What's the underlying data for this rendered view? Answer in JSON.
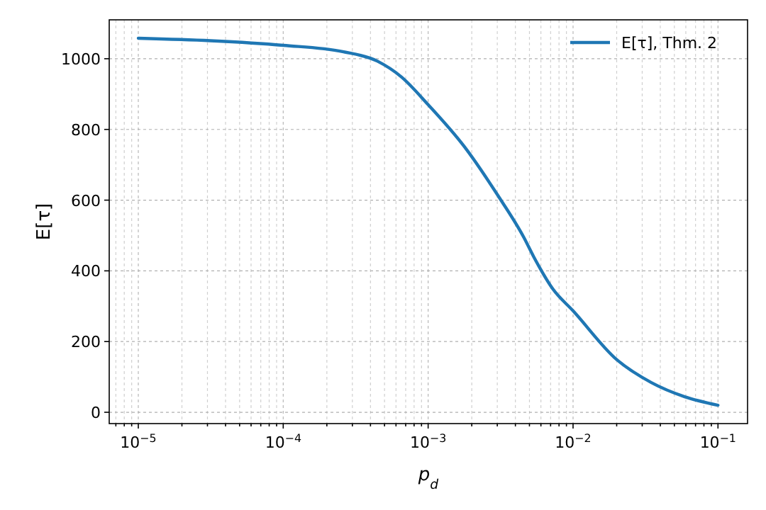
{
  "chart_data": {
    "type": "line",
    "xlabel": "p$_{d}$",
    "ylabel": "E[τ]",
    "log": "x",
    "grid": true,
    "legend": "top right",
    "line_style": "solid",
    "marker": "none",
    "xlim": [
      6.3e-06,
      0.16
    ],
    "ylim": [
      -32,
      1110
    ],
    "xticks": [
      {
        "value": 7e-06,
        "label": null
      },
      {
        "value": 8e-06,
        "label": null
      },
      {
        "value": 9e-06,
        "label": null
      },
      {
        "value": 1e-05,
        "label": "10$^{−5}$"
      },
      {
        "value": 2e-05,
        "label": null
      },
      {
        "value": 3e-05,
        "label": null
      },
      {
        "value": 4e-05,
        "label": null
      },
      {
        "value": 5e-05,
        "label": null
      },
      {
        "value": 6e-05,
        "label": null
      },
      {
        "value": 7e-05,
        "label": null
      },
      {
        "value": 8e-05,
        "label": null
      },
      {
        "value": 9e-05,
        "label": null
      },
      {
        "value": 0.0001,
        "label": "10$^{−4}$"
      },
      {
        "value": 0.0002,
        "label": null
      },
      {
        "value": 0.0003,
        "label": null
      },
      {
        "value": 0.0004,
        "label": null
      },
      {
        "value": 0.0005,
        "label": null
      },
      {
        "value": 0.0006,
        "label": null
      },
      {
        "value": 0.0007,
        "label": null
      },
      {
        "value": 0.0008,
        "label": null
      },
      {
        "value": 0.0009,
        "label": null
      },
      {
        "value": 0.001,
        "label": "10$^{−3}$"
      },
      {
        "value": 0.002,
        "label": null
      },
      {
        "value": 0.003,
        "label": null
      },
      {
        "value": 0.004,
        "label": null
      },
      {
        "value": 0.005,
        "label": null
      },
      {
        "value": 0.006,
        "label": null
      },
      {
        "value": 0.007,
        "label": null
      },
      {
        "value": 0.008,
        "label": null
      },
      {
        "value": 0.009,
        "label": null
      },
      {
        "value": 0.01,
        "label": "10$^{−2}$"
      },
      {
        "value": 0.02,
        "label": null
      },
      {
        "value": 0.03,
        "label": null
      },
      {
        "value": 0.04,
        "label": null
      },
      {
        "value": 0.05,
        "label": null
      },
      {
        "value": 0.06,
        "label": null
      },
      {
        "value": 0.07,
        "label": null
      },
      {
        "value": 0.08,
        "label": null
      },
      {
        "value": 0.09,
        "label": null
      },
      {
        "value": 0.1,
        "label": "10$^{−1}$"
      }
    ],
    "yticks": [
      0,
      200,
      400,
      600,
      800,
      1000
    ],
    "series": [
      {
        "name": "E[τ], Thm. 2",
        "color": "#1f77b4",
        "x": [
          1e-05,
          3.16e-05,
          0.0001,
          0.000257,
          0.000447,
          0.000656,
          0.001,
          0.00178,
          0.00302,
          0.00457,
          0.00535,
          0.00724,
          0.01,
          0.02,
          0.0347,
          0.0589,
          0.1
        ],
        "values": [
          1058,
          1051,
          1038,
          1020,
          993,
          948,
          870,
          751,
          614,
          495,
          440,
          349,
          287,
          149,
          84,
          44,
          20
        ]
      }
    ]
  }
}
